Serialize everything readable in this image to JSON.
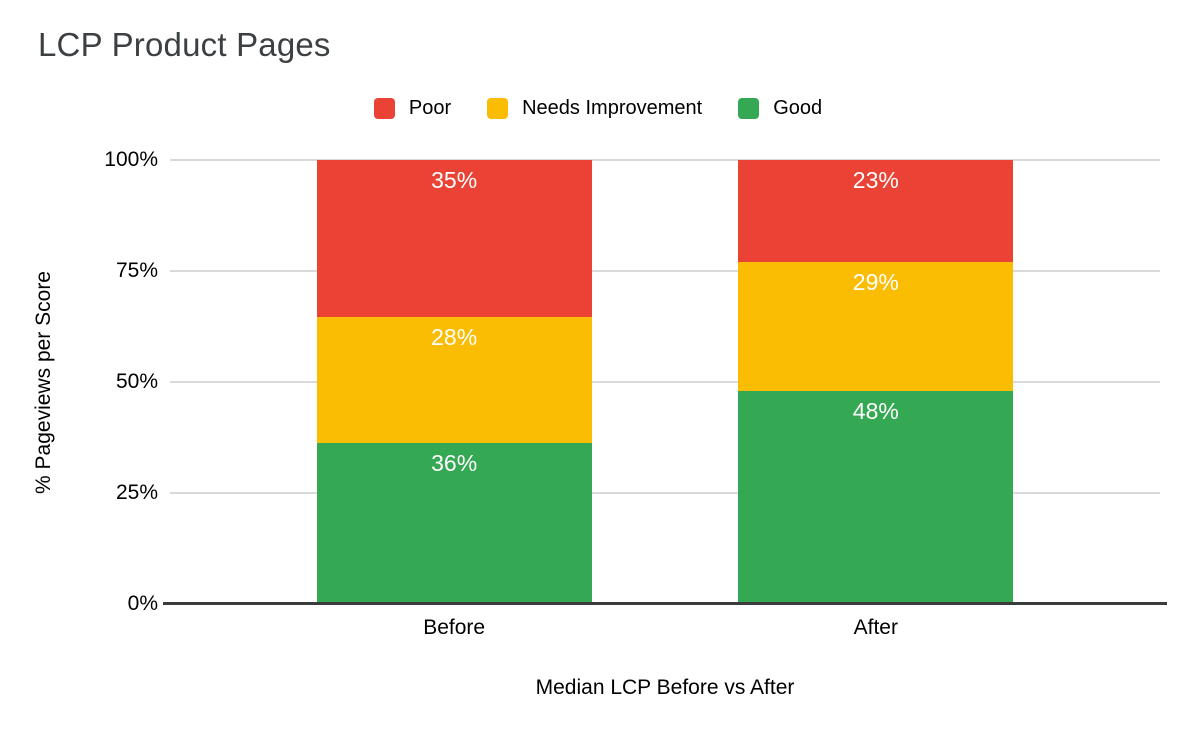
{
  "title": "LCP Product Pages",
  "y_axis": {
    "title": "% Pageviews per Score"
  },
  "x_axis": {
    "title": "Median LCP Before vs After"
  },
  "colors": {
    "poor": "#ea4335",
    "needs_improvement": "#fbbc04",
    "good": "#34a853",
    "gridline": "#d9d9d9",
    "axis_line": "#3b3b3b",
    "title_text": "#3c4043",
    "bar_label_text": "#ffffff"
  },
  "chart_data": {
    "type": "bar",
    "stacked": true,
    "orientation": "vertical",
    "title": "LCP Product Pages",
    "xlabel": "Median LCP Before vs After",
    "ylabel": "% Pageviews per Score",
    "categories": [
      "Before",
      "After"
    ],
    "series": [
      {
        "name": "Poor",
        "color": "#ea4335",
        "values": [
          35,
          23
        ]
      },
      {
        "name": "Needs Improvement",
        "color": "#fbbc04",
        "values": [
          28,
          29
        ]
      },
      {
        "name": "Good",
        "color": "#34a853",
        "values": [
          36,
          48
        ]
      }
    ],
    "data_labels": {
      "Before": [
        "35%",
        "28%",
        "36%"
      ],
      "After": [
        "23%",
        "29%",
        "48%"
      ]
    },
    "ylim": [
      0,
      100
    ],
    "y_ticks": [
      "0%",
      "25%",
      "50%",
      "75%",
      "100%"
    ],
    "grid": true,
    "legend_position": "top",
    "legend_order": [
      "Poor",
      "Needs Improvement",
      "Good"
    ]
  }
}
